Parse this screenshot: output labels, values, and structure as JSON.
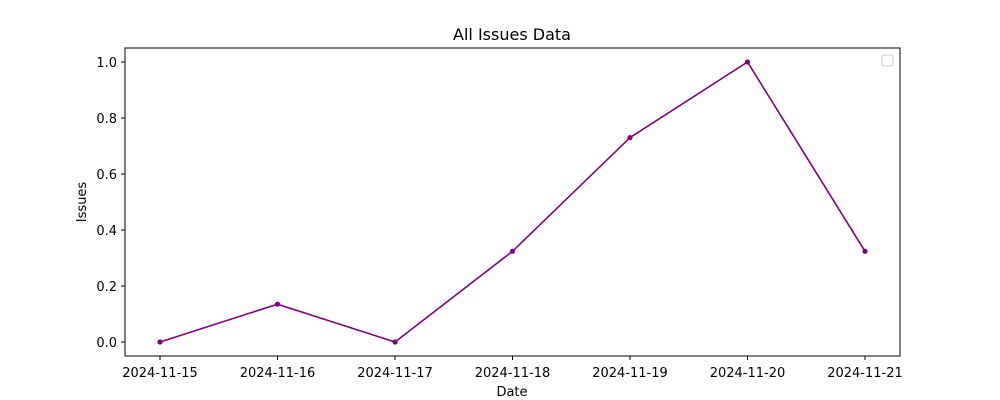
{
  "chart_data": {
    "type": "line",
    "title": "All Issues Data",
    "xlabel": "Date",
    "ylabel": "Issues",
    "categories": [
      "2024-11-15",
      "2024-11-16",
      "2024-11-17",
      "2024-11-18",
      "2024-11-19",
      "2024-11-20",
      "2024-11-21"
    ],
    "series": [
      {
        "name": "",
        "color": "#800080",
        "values": [
          0.0,
          0.135,
          0.0,
          0.324,
          0.73,
          1.0,
          0.324
        ]
      }
    ],
    "ylim": [
      -0.05,
      1.05
    ],
    "yticks": [
      0.0,
      0.2,
      0.4,
      0.6,
      0.8,
      1.0
    ],
    "ytick_labels": [
      "0.0",
      "0.2",
      "0.4",
      "0.6",
      "0.8",
      "1.0"
    ],
    "grid": false,
    "legend": {
      "position": "top-right",
      "entries": []
    }
  }
}
